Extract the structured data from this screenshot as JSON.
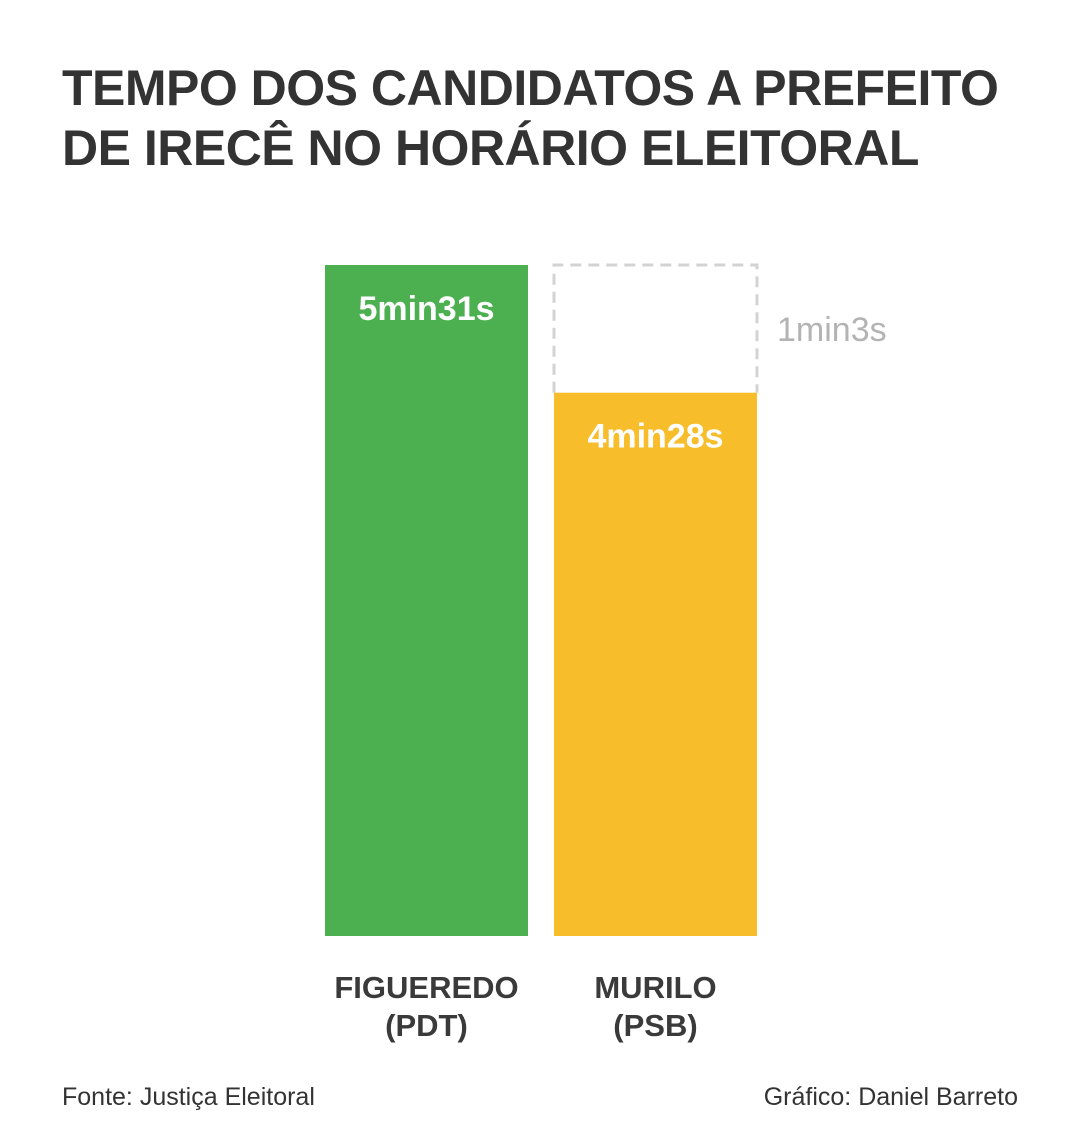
{
  "title_lines": [
    "TEMPO DOS CANDIDATOS A PREFEITO",
    "DE IRECÊ NO HORÁRIO ELEITORAL"
  ],
  "chart_data": {
    "type": "bar",
    "categories": [
      [
        "FIGUEREDO",
        "(PDT)"
      ],
      [
        "MURILO",
        "(PSB)"
      ]
    ],
    "values_seconds": [
      331,
      268
    ],
    "value_labels": [
      "5min31s",
      "4min28s"
    ],
    "difference": {
      "value_seconds": 63,
      "label": "1min3s"
    },
    "colors": [
      "#4caf50",
      "#f7bd2b"
    ],
    "difference_outline_color": "#d3d3d3",
    "grid": false,
    "legend": "none"
  },
  "footer": {
    "source": "Fonte: Justiça Eleitoral",
    "credit": "Gráfico: Daniel Barreto"
  }
}
